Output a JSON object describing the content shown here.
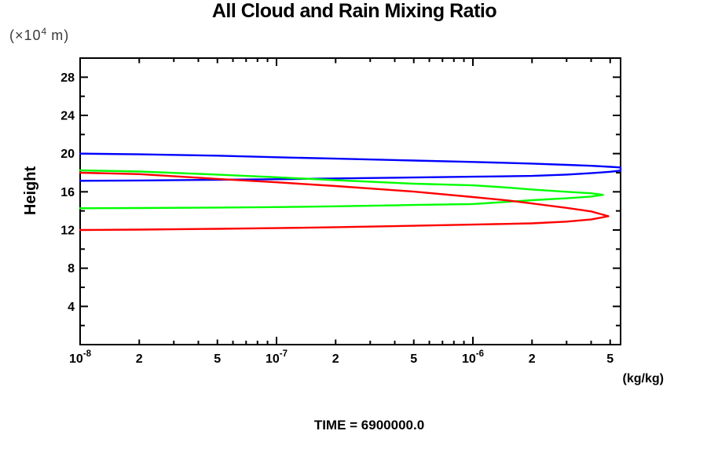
{
  "title": "All Cloud and Rain Mixing Ratio",
  "labels": {
    "y_axis_unit": {
      "prefix": "(×10",
      "sup": "4",
      "suffix": " m)"
    },
    "y_axis_title": "Height",
    "x_axis_unit": "(kg/kg)",
    "footer": "TIME = 6900000.0"
  },
  "colors": {
    "axis": "#000000",
    "background": "#ffffff",
    "series_blue": "#0000ff",
    "series_green": "#00ff00",
    "series_red": "#ff0000"
  },
  "chart_data": {
    "type": "line",
    "title": "All Cloud and Rain Mixing Ratio",
    "xlabel": "(kg/kg)",
    "ylabel": "Height (×10^4 m)",
    "x_scale": "log",
    "xlim": [
      1e-08,
      5.65e-06
    ],
    "ylim": [
      0,
      30
    ],
    "grid": false,
    "legend": "none",
    "annotations": [
      "TIME = 6900000.0"
    ],
    "x_ticks": [
      {
        "value": 1e-08,
        "label": "10^-8",
        "kind": "decade"
      },
      {
        "value": 2e-08,
        "label": "2",
        "kind": "labeled"
      },
      {
        "value": 3e-08,
        "kind": "minor"
      },
      {
        "value": 4e-08,
        "kind": "minor"
      },
      {
        "value": 5e-08,
        "label": "5",
        "kind": "labeled"
      },
      {
        "value": 6e-08,
        "kind": "minor"
      },
      {
        "value": 7e-08,
        "kind": "minor"
      },
      {
        "value": 8e-08,
        "kind": "minor"
      },
      {
        "value": 9e-08,
        "kind": "minor"
      },
      {
        "value": 1e-07,
        "label": "10^-7",
        "kind": "decade"
      },
      {
        "value": 2e-07,
        "label": "2",
        "kind": "labeled"
      },
      {
        "value": 3e-07,
        "kind": "minor"
      },
      {
        "value": 4e-07,
        "kind": "minor"
      },
      {
        "value": 5e-07,
        "label": "5",
        "kind": "labeled"
      },
      {
        "value": 6e-07,
        "kind": "minor"
      },
      {
        "value": 7e-07,
        "kind": "minor"
      },
      {
        "value": 8e-07,
        "kind": "minor"
      },
      {
        "value": 9e-07,
        "kind": "minor"
      },
      {
        "value": 1e-06,
        "label": "10^-6",
        "kind": "decade"
      },
      {
        "value": 2e-06,
        "label": "2",
        "kind": "labeled"
      },
      {
        "value": 3e-06,
        "kind": "minor"
      },
      {
        "value": 4e-06,
        "kind": "minor"
      },
      {
        "value": 5e-06,
        "label": "5",
        "kind": "labeled"
      }
    ],
    "y_ticks": [
      {
        "value": 2,
        "kind": "minor"
      },
      {
        "value": 4,
        "label": "4",
        "kind": "major"
      },
      {
        "value": 6,
        "kind": "minor"
      },
      {
        "value": 8,
        "label": "8",
        "kind": "major"
      },
      {
        "value": 10,
        "kind": "minor"
      },
      {
        "value": 12,
        "label": "12",
        "kind": "major"
      },
      {
        "value": 14,
        "kind": "minor"
      },
      {
        "value": 16,
        "label": "16",
        "kind": "major"
      },
      {
        "value": 18,
        "kind": "minor"
      },
      {
        "value": 20,
        "label": "20",
        "kind": "major"
      },
      {
        "value": 22,
        "kind": "minor"
      },
      {
        "value": 24,
        "label": "24",
        "kind": "major"
      },
      {
        "value": 26,
        "kind": "minor"
      },
      {
        "value": 28,
        "label": "28",
        "kind": "major"
      }
    ],
    "series": [
      {
        "name": "blue",
        "color": "#0000ff",
        "points_format": [
          "mixing_ratio_kg_per_kg",
          "height_1e4_m"
        ],
        "points": [
          [
            1e-08,
            20.0
          ],
          [
            2e-08,
            19.92
          ],
          [
            5e-08,
            19.78
          ],
          [
            1e-07,
            19.62
          ],
          [
            2e-07,
            19.47
          ],
          [
            5e-07,
            19.27
          ],
          [
            1e-06,
            19.13
          ],
          [
            2e-06,
            18.95
          ],
          [
            3e-06,
            18.82
          ],
          [
            4e-06,
            18.72
          ],
          [
            5e-06,
            18.62
          ],
          [
            5.65e-06,
            18.55
          ],
          [
            5.65e-06,
            18.22
          ],
          [
            5e-06,
            18.1
          ],
          [
            4e-06,
            17.95
          ],
          [
            3e-06,
            17.8
          ],
          [
            2e-06,
            17.66
          ],
          [
            1e-06,
            17.58
          ],
          [
            5e-07,
            17.5
          ],
          [
            2e-07,
            17.4
          ],
          [
            1e-07,
            17.32
          ],
          [
            5e-08,
            17.26
          ],
          [
            2e-08,
            17.19
          ],
          [
            1e-08,
            17.15
          ]
        ]
      },
      {
        "name": "green",
        "color": "#00ff00",
        "points_format": [
          "mixing_ratio_kg_per_kg",
          "height_1e4_m"
        ],
        "points": [
          [
            1e-08,
            18.25
          ],
          [
            2e-08,
            18.12
          ],
          [
            5e-08,
            17.8
          ],
          [
            1e-07,
            17.52
          ],
          [
            2e-07,
            17.22
          ],
          [
            5e-07,
            16.85
          ],
          [
            1e-06,
            16.68
          ],
          [
            1.5e-06,
            16.45
          ],
          [
            2e-06,
            16.24
          ],
          [
            3e-06,
            16.0
          ],
          [
            4e-06,
            15.85
          ],
          [
            4.6e-06,
            15.68
          ],
          [
            4e-06,
            15.5
          ],
          [
            3e-06,
            15.32
          ],
          [
            2e-06,
            15.12
          ],
          [
            1.5e-06,
            14.95
          ],
          [
            1e-06,
            14.72
          ],
          [
            5e-07,
            14.62
          ],
          [
            2e-07,
            14.48
          ],
          [
            1e-07,
            14.4
          ],
          [
            5e-08,
            14.35
          ],
          [
            2e-08,
            14.3
          ],
          [
            1e-08,
            14.28
          ]
        ]
      },
      {
        "name": "red",
        "color": "#ff0000",
        "points_format": [
          "mixing_ratio_kg_per_kg",
          "height_1e4_m"
        ],
        "points": [
          [
            1e-08,
            18.0
          ],
          [
            2e-08,
            17.85
          ],
          [
            5e-08,
            17.35
          ],
          [
            1e-07,
            17.0
          ],
          [
            2e-07,
            16.6
          ],
          [
            5e-07,
            16.02
          ],
          [
            1e-06,
            15.45
          ],
          [
            1.5e-06,
            15.1
          ],
          [
            2e-06,
            14.78
          ],
          [
            3e-06,
            14.32
          ],
          [
            4e-06,
            13.95
          ],
          [
            4.9e-06,
            13.45
          ],
          [
            4e-06,
            13.1
          ],
          [
            3e-06,
            12.88
          ],
          [
            2e-06,
            12.7
          ],
          [
            1e-06,
            12.57
          ],
          [
            5e-07,
            12.44
          ],
          [
            2e-07,
            12.3
          ],
          [
            1e-07,
            12.2
          ],
          [
            5e-08,
            12.12
          ],
          [
            2e-08,
            12.04
          ],
          [
            1e-08,
            12.0
          ]
        ]
      }
    ]
  }
}
